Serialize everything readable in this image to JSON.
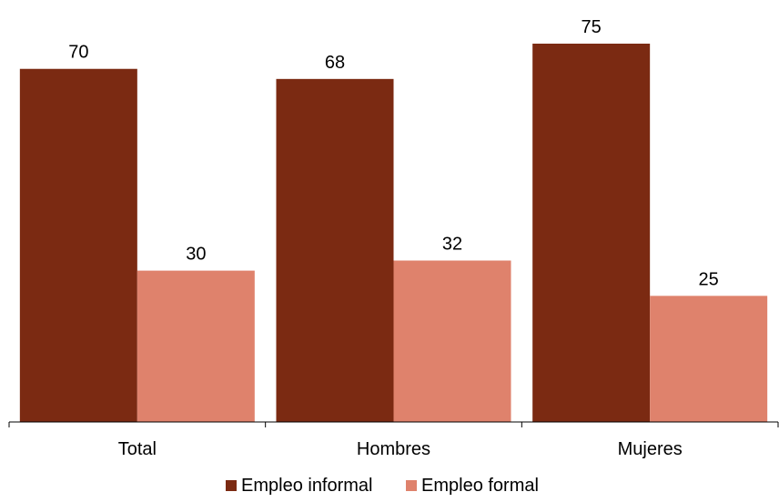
{
  "chart_data": {
    "type": "bar",
    "categories": [
      "Total",
      "Hombres",
      "Mujeres"
    ],
    "series": [
      {
        "name": "Empleo informal",
        "values": [
          70,
          68,
          75
        ],
        "color": "#7B2A12"
      },
      {
        "name": "Empleo formal",
        "values": [
          30,
          32,
          25
        ],
        "color": "#DF826C"
      }
    ],
    "ylim": [
      0,
      78
    ],
    "grid": false,
    "legend_position": "bottom"
  }
}
